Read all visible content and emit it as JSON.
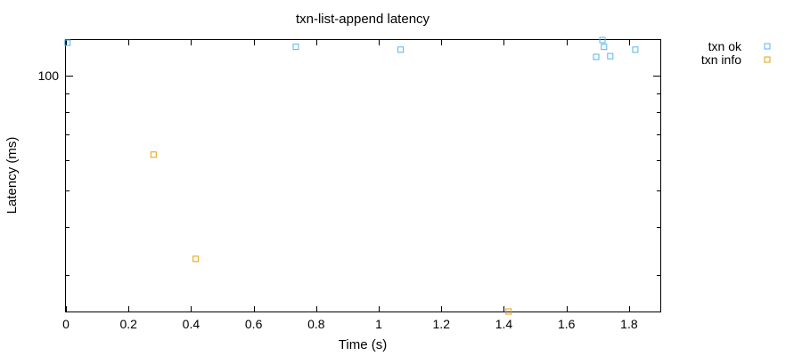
{
  "chart_data": {
    "type": "scatter",
    "title": "txn-list-append latency",
    "xlabel": "Time (s)",
    "ylabel": "Latency (ms)",
    "xlim": [
      0,
      1.9
    ],
    "ylim": [
      24,
      124
    ],
    "yscale": "log",
    "x_ticks": [
      "0",
      "0.2",
      "0.4",
      "0.6",
      "0.8",
      "1",
      "1.2",
      "1.4",
      "1.6",
      "1.8"
    ],
    "y_ticks": [
      "100"
    ],
    "grid": false,
    "legend_position": "outside-top-right",
    "series": [
      {
        "name": "txn ok",
        "color": "#56b4e9",
        "marker": "open-square",
        "points": [
          {
            "x": 0.005,
            "y": 122
          },
          {
            "x": 0.735,
            "y": 119
          },
          {
            "x": 1.07,
            "y": 117
          },
          {
            "x": 1.695,
            "y": 112
          },
          {
            "x": 1.715,
            "y": 124
          },
          {
            "x": 1.72,
            "y": 119
          },
          {
            "x": 1.74,
            "y": 112.5
          },
          {
            "x": 1.82,
            "y": 117
          }
        ]
      },
      {
        "name": "txn info",
        "color": "#e69f00",
        "marker": "open-square",
        "points": [
          {
            "x": 0.28,
            "y": 62
          },
          {
            "x": 0.415,
            "y": 33
          },
          {
            "x": 1.415,
            "y": 24
          }
        ]
      }
    ]
  }
}
